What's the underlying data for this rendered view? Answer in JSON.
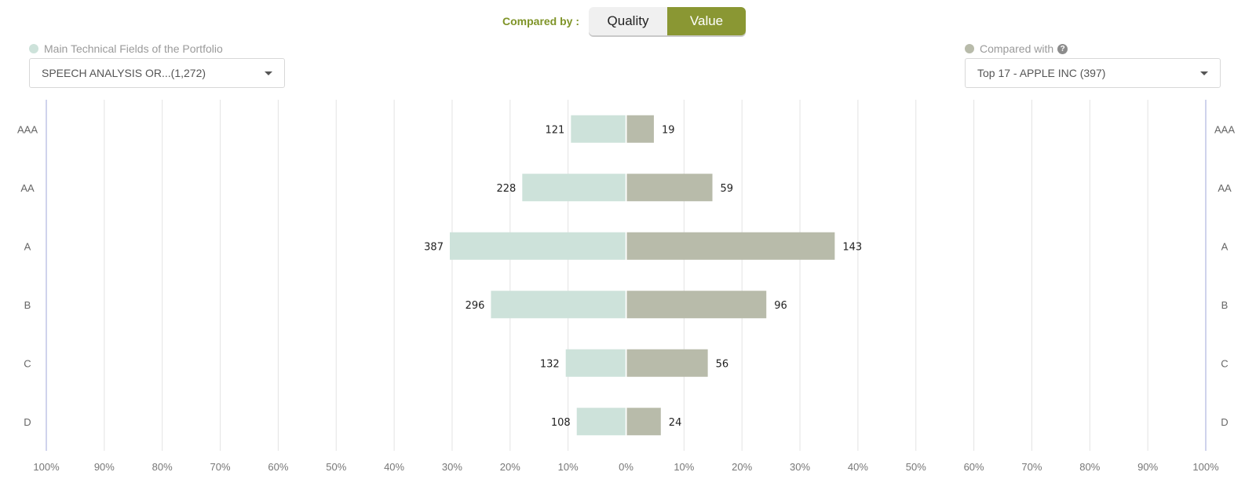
{
  "controls": {
    "compared_by_label": "Compared by :",
    "toggle": {
      "options": [
        "Quality",
        "Value"
      ],
      "selected": "Value"
    }
  },
  "left_panel": {
    "legend_label": "Main Technical Fields of the Portfolio",
    "legend_color": "#cde2da",
    "select_value": "SPEECH ANALYSIS OR...(1,272)"
  },
  "right_panel": {
    "legend_label": "Compared with",
    "legend_color": "#b8bbaa",
    "help_icon": "question-circle-icon",
    "select_value": "Top 17 - APPLE INC (397)"
  },
  "chart_data": {
    "type": "bar",
    "orientation": "horizontal-diverging",
    "categories": [
      "AAA",
      "AA",
      "A",
      "B",
      "C",
      "D"
    ],
    "series": [
      {
        "side": "left",
        "color": "#cde2da",
        "counts": [
          121,
          228,
          387,
          296,
          132,
          108
        ],
        "percent": [
          9.5,
          17.9,
          30.4,
          23.3,
          10.4,
          8.5
        ]
      },
      {
        "side": "right",
        "color": "#b8bbaa",
        "counts": [
          19,
          59,
          143,
          96,
          56,
          24
        ],
        "percent": [
          4.8,
          14.9,
          36.0,
          24.2,
          14.1,
          6.0
        ]
      }
    ],
    "axis_ticks": [
      "100%",
      "90%",
      "80%",
      "70%",
      "60%",
      "50%",
      "40%",
      "30%",
      "20%",
      "10%",
      "0%",
      "10%",
      "20%",
      "30%",
      "40%",
      "50%",
      "60%",
      "70%",
      "80%",
      "90%",
      "100%"
    ],
    "xlim": [
      -100,
      100
    ],
    "grid": true
  }
}
